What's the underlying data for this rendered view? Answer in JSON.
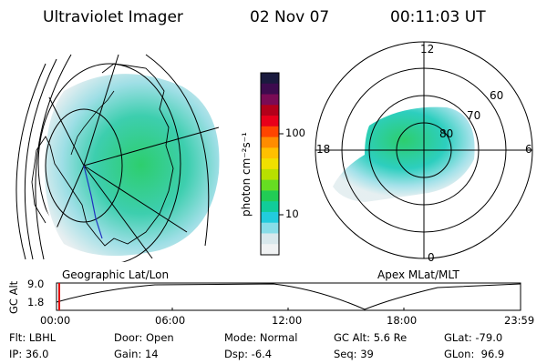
{
  "header": {
    "title": "Ultraviolet Imager",
    "date": "02 Nov 07",
    "time": "00:11:03 UT"
  },
  "left_panel": {
    "caption": "Geographic Lat/Lon"
  },
  "right_panel": {
    "caption": "Apex MLat/MLT",
    "mlt_labels": [
      "12",
      "18",
      "6",
      "0"
    ],
    "mlat_labels": [
      "60",
      "70",
      "80"
    ]
  },
  "colorbar": {
    "label": "photon cm⁻²s⁻¹",
    "ticks": [
      "100",
      "10"
    ],
    "colors": [
      "#1a1a3e",
      "#3d0b4e",
      "#7a0b55",
      "#b3001a",
      "#e8001a",
      "#ff4500",
      "#ff8c00",
      "#ffc000",
      "#f0e000",
      "#b8e000",
      "#66dd22",
      "#22cc55",
      "#11cc99",
      "#22ccdd",
      "#88dde8",
      "#d8e8ec",
      "#f0f2f3"
    ]
  },
  "timeline": {
    "axis_label": "GC Alt",
    "y_ticks": [
      "9.0",
      "1.8"
    ],
    "x_ticks": [
      "00:00",
      "06:00",
      "12:00",
      "18:00",
      "23:59"
    ],
    "marker_color": "#e00000"
  },
  "status": {
    "flt": "Flt: LBHL",
    "door": "Door: Open",
    "mode": "Mode: Normal",
    "gc_alt": "GC Alt: 5.6 Re",
    "glat": "GLat: -79.0",
    "ip": "IP: 36.0",
    "gain": "Gain: 14",
    "dsp": "Dsp:    -6.4",
    "seq": "Seq: 39",
    "glon": "GLon:  96.9"
  }
}
